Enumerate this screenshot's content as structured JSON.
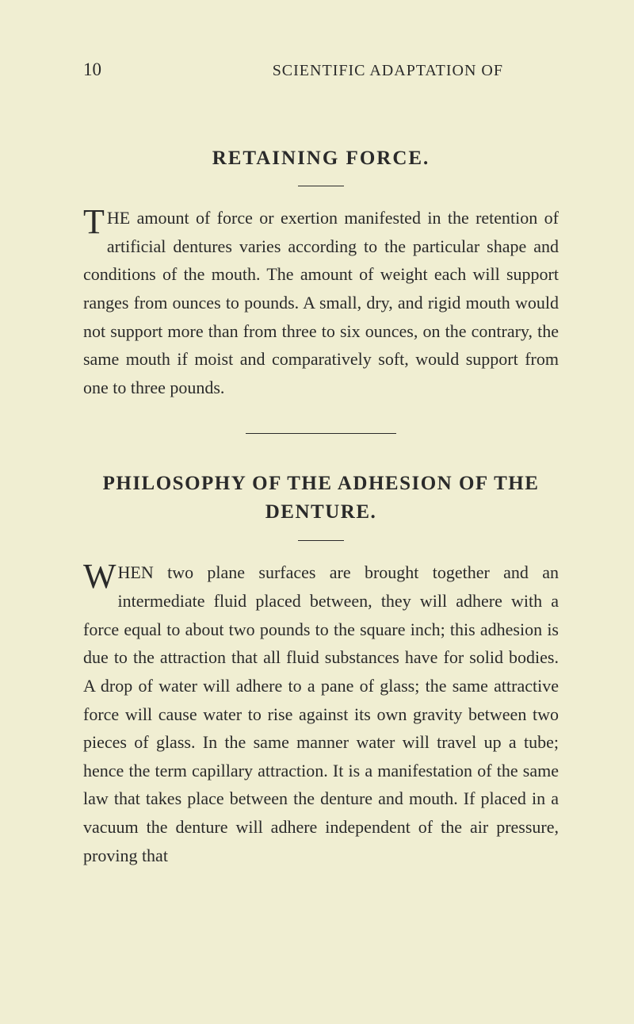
{
  "colors": {
    "background": "#f0eed2",
    "text": "#2a2a2a"
  },
  "typography": {
    "body_font": "Georgia, Times New Roman, serif",
    "body_fontsize": 22,
    "body_lineheight": 1.62,
    "title_fontsize": 25,
    "header_fontsize": 20,
    "page_number_fontsize": 23,
    "dropcap_fontsize": 44
  },
  "page": {
    "number": "10",
    "running_header": "SCIENTIFIC ADAPTATION OF"
  },
  "section1": {
    "title": "RETAINING FORCE.",
    "dropcap": "T",
    "body": "HE amount of force or exertion manifested in the retention of artificial dentures varies according to the particular shape and conditions of the mouth. The amount of weight each will support ranges from ounces to pounds. A small, dry, and rigid mouth would not support more than from three to six ounces, on the contrary, the same mouth if moist and comparatively soft, would support from one to three pounds."
  },
  "section2": {
    "title": "PHILOSOPHY OF THE ADHESION OF THE DENTURE.",
    "dropcap": "W",
    "body": "HEN two plane surfaces are brought together and an intermediate fluid placed between, they will adhere with a force equal to about two pounds to the square inch; this adhesion is due to the attraction that all fluid substances have for solid bodies. A drop of water will adhere to a pane of glass; the same attractive force will cause water to rise against its own gravity between two pieces of glass. In the same manner water will travel up a tube; hence the term capillary attraction. It is a manifestation of the same law that takes place between the denture and mouth. If placed in a vacuum the denture will adhere independent of the air pressure, proving that"
  }
}
